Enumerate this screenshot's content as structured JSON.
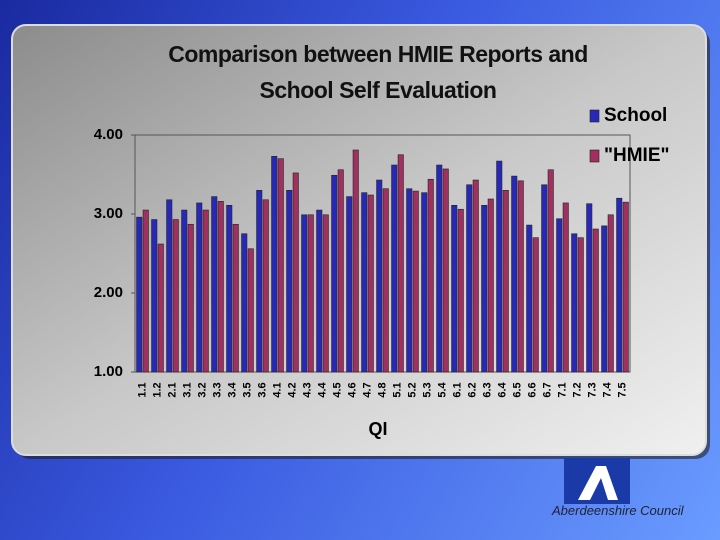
{
  "chart_data": {
    "type": "bar",
    "title": "Comparison between HMIE Reports and School Self Evaluation",
    "x_label": "QI",
    "categories": [
      "1.1",
      "1.2",
      "2.1",
      "3.1",
      "3.2",
      "3.3",
      "3.4",
      "3.5",
      "3.6",
      "4.1",
      "4.2",
      "4.3",
      "4.4",
      "4.5",
      "4.6",
      "4.7",
      "4.8",
      "5.1",
      "5.2",
      "5.3",
      "5.4",
      "6.1",
      "6.2",
      "6.3",
      "6.4",
      "6.5",
      "6.6",
      "6.7",
      "7.1",
      "7.2",
      "7.3",
      "7.4",
      "7.5"
    ],
    "series": [
      {
        "name": "School",
        "color": "#2828b8",
        "values": [
          2.96,
          2.93,
          3.18,
          3.05,
          3.14,
          3.22,
          3.11,
          2.75,
          3.3,
          3.73,
          3.3,
          2.99,
          3.05,
          3.49,
          3.22,
          3.27,
          3.43,
          3.62,
          3.32,
          3.27,
          3.62,
          3.11,
          3.37,
          3.11,
          3.67,
          3.48,
          2.86,
          3.37,
          2.94,
          2.75,
          3.13,
          2.85,
          3.2
        ]
      },
      {
        "name": "\"HMIE\"",
        "color": "#a03060",
        "values": [
          3.05,
          2.62,
          2.93,
          2.87,
          3.05,
          3.16,
          2.87,
          2.56,
          3.18,
          3.7,
          3.52,
          2.99,
          2.99,
          3.56,
          3.81,
          3.24,
          3.32,
          3.75,
          3.29,
          3.44,
          3.57,
          3.06,
          3.43,
          3.19,
          3.3,
          3.42,
          2.7,
          3.56,
          3.14,
          2.7,
          2.81,
          2.99,
          3.15
        ]
      }
    ],
    "ylim": [
      1,
      4
    ],
    "yticks": [
      {
        "value": 1,
        "label": "1.00"
      },
      {
        "value": 2,
        "label": "2.00"
      },
      {
        "value": 3,
        "label": "3.00"
      },
      {
        "value": 4,
        "label": "4.00"
      }
    ],
    "legend": "top-right"
  },
  "footer": {
    "logo_text": "Aberdeenshire Council"
  }
}
